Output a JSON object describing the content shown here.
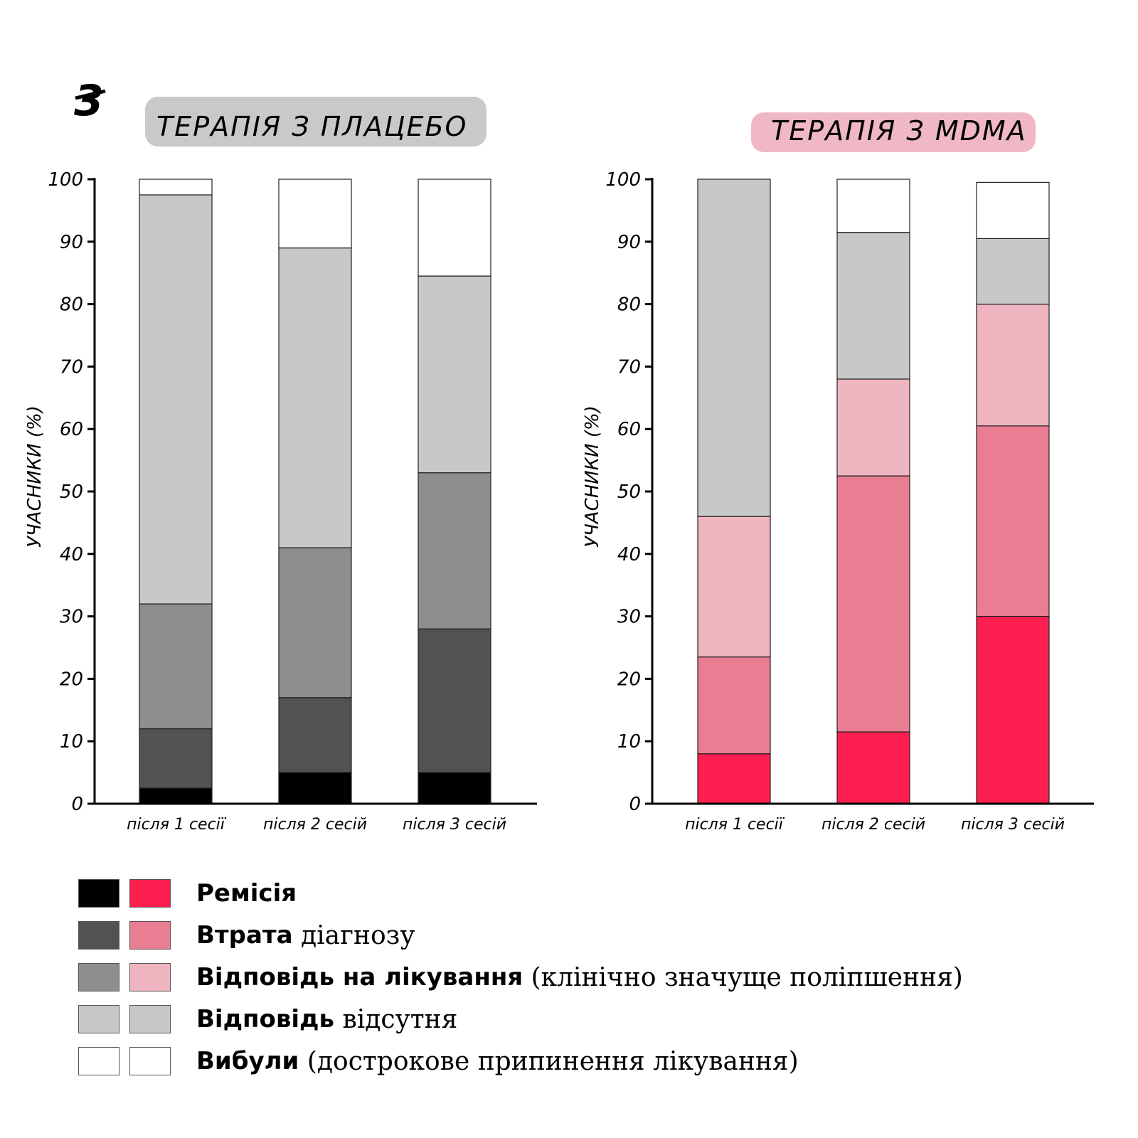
{
  "panel_number": "3",
  "chart_data": [
    {
      "type": "bar",
      "stacked": true,
      "title": "ТЕРАПІЯ З ПЛАЦЕБО",
      "ylabel": "УЧАСНИКИ (%)",
      "xlabel": "",
      "ylim": [
        0,
        100
      ],
      "yticks": [
        0,
        10,
        20,
        30,
        40,
        50,
        60,
        70,
        80,
        90,
        100
      ],
      "categories": [
        "після 1 сесії",
        "після 2 сесій",
        "після 3 сесій"
      ],
      "title_band_color": "#c9c9c9",
      "series": [
        {
          "name": "Ремісія",
          "color": "#000000",
          "values": [
            2.5,
            5,
            5
          ]
        },
        {
          "name": "Втрата діагнозу",
          "color": "#525252",
          "values": [
            9.5,
            12,
            23
          ]
        },
        {
          "name": "Відповідь на лікування",
          "color": "#8e8e8e",
          "values": [
            20,
            24,
            25
          ]
        },
        {
          "name": "Відповідь відсутня",
          "color": "#c8c8c8",
          "values": [
            65.5,
            48,
            31.5
          ]
        },
        {
          "name": "Вибули",
          "color": "#ffffff",
          "values": [
            2.5,
            11,
            15.5
          ]
        }
      ]
    },
    {
      "type": "bar",
      "stacked": true,
      "title": "ТЕРАПІЯ З MDMA",
      "ylabel": "УЧАСНИКИ (%)",
      "xlabel": "",
      "ylim": [
        0,
        100
      ],
      "yticks": [
        0,
        10,
        20,
        30,
        40,
        50,
        60,
        70,
        80,
        90,
        100
      ],
      "categories": [
        "після 1 сесії",
        "після 2 сесій",
        "після 3 сесій"
      ],
      "title_band_color": "#efb8c4",
      "series": [
        {
          "name": "Ремісія",
          "color": "#fc1f50",
          "values": [
            8,
            11.5,
            30
          ]
        },
        {
          "name": "Втрата діагнозу",
          "color": "#e97d91",
          "values": [
            15.5,
            41,
            30.5
          ]
        },
        {
          "name": "Відповідь на лікування",
          "color": "#efb5c1",
          "values": [
            22.5,
            15.5,
            19.5
          ]
        },
        {
          "name": "Відповідь відсутня",
          "color": "#c8c8c8",
          "values": [
            54,
            23.5,
            10.5
          ]
        },
        {
          "name": "Вибули",
          "color": "#ffffff",
          "values": [
            0,
            8.5,
            9
          ]
        }
      ]
    }
  ],
  "legend": [
    {
      "strong": "Ремісія",
      "rest": "",
      "colors": [
        "#000000",
        "#fc1f50"
      ]
    },
    {
      "strong": "Втрата",
      "rest": " діагнозу",
      "colors": [
        "#525252",
        "#e97d91"
      ]
    },
    {
      "strong": "Відповідь на лікування",
      "rest": " (клінічно значуще поліпшення)",
      "colors": [
        "#8e8e8e",
        "#efb5c1"
      ]
    },
    {
      "strong": "Відповідь",
      "rest": " відсутня",
      "colors": [
        "#c8c8c8",
        "#c8c8c8"
      ]
    },
    {
      "strong": "Вибули",
      "rest": " (дострокове припинення лікування)",
      "colors": [
        "#ffffff",
        "#ffffff"
      ]
    }
  ]
}
